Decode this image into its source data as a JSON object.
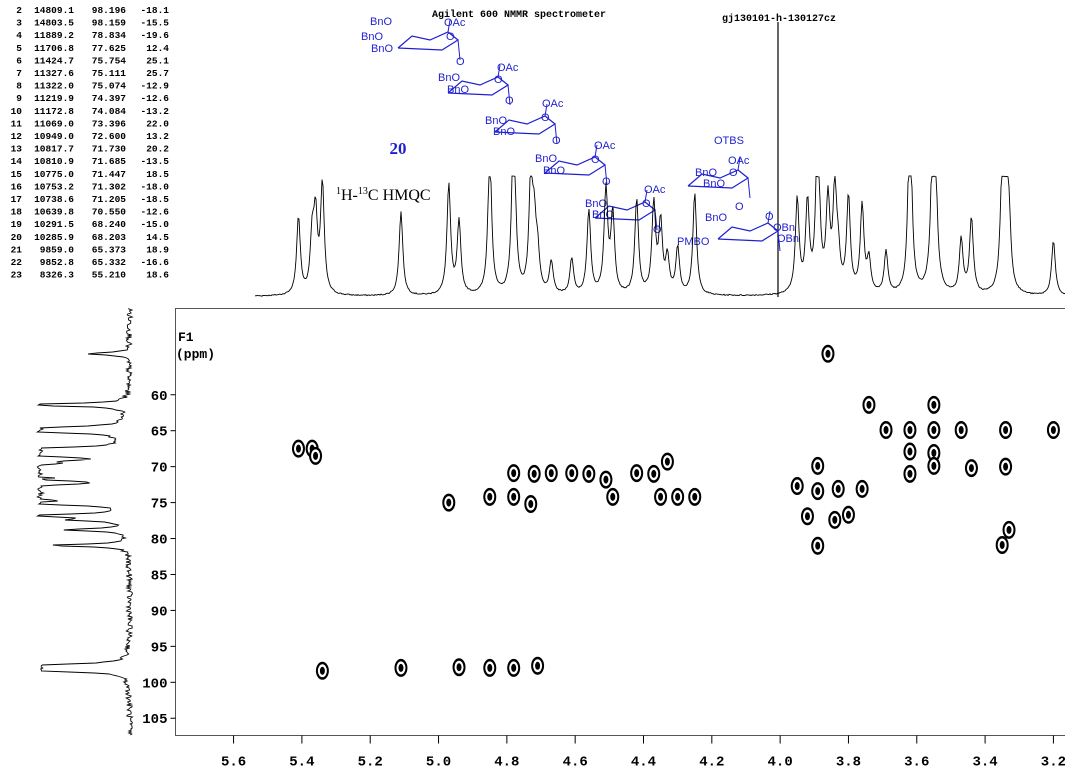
{
  "header": {
    "instrument": "Agilent 600 NMMR spectrometer",
    "file": "gj130101-h-130127cz"
  },
  "peak_table": {
    "rows": [
      [
        "2",
        "14809.1",
        "98.196",
        "-18.1"
      ],
      [
        "3",
        "14803.5",
        "98.159",
        "-15.5"
      ],
      [
        "4",
        "11889.2",
        "78.834",
        "-19.6"
      ],
      [
        "5",
        "11706.8",
        "77.625",
        "12.4"
      ],
      [
        "6",
        "11424.7",
        "75.754",
        "25.1"
      ],
      [
        "7",
        "11327.6",
        "75.111",
        "25.7"
      ],
      [
        "8",
        "11322.0",
        "75.074",
        "-12.9"
      ],
      [
        "9",
        "11219.9",
        "74.397",
        "-12.6"
      ],
      [
        "10",
        "11172.8",
        "74.084",
        "-13.2"
      ],
      [
        "11",
        "11069.0",
        "73.396",
        "22.0"
      ],
      [
        "12",
        "10949.0",
        "72.600",
        "13.2"
      ],
      [
        "13",
        "10817.7",
        "71.730",
        "20.2"
      ],
      [
        "14",
        "10810.9",
        "71.685",
        "-13.5"
      ],
      [
        "15",
        "10775.0",
        "71.447",
        "18.5"
      ],
      [
        "16",
        "10753.2",
        "71.302",
        "-18.0"
      ],
      [
        "17",
        "10738.6",
        "71.205",
        "-18.5"
      ],
      [
        "18",
        "10639.8",
        "70.550",
        "-12.6"
      ],
      [
        "19",
        "10291.5",
        "68.240",
        "-15.0"
      ],
      [
        "20",
        "10285.9",
        "68.203",
        "14.5"
      ],
      [
        "21",
        "9859.0",
        "65.373",
        "18.9"
      ],
      [
        "22",
        "9852.8",
        "65.332",
        "-16.6"
      ],
      [
        "23",
        "8326.3",
        "55.210",
        "18.6"
      ]
    ]
  },
  "compound": {
    "number": "20",
    "experiment": [
      "1",
      "H-",
      "13",
      "C HMQC"
    ]
  },
  "structure": {
    "labels": [
      "BnO",
      "BnO",
      "BnO",
      "OAc",
      "O",
      "O",
      "BnO",
      "BnO",
      "OAc",
      "O",
      "O",
      "BnO",
      "BnO",
      "OAc",
      "O",
      "O",
      "BnO",
      "BnO",
      "OAc",
      "O",
      "O",
      "BnO",
      "BnO",
      "OAc",
      "O",
      "O",
      "OTBS",
      "BnO",
      "BnO",
      "OAc",
      "O",
      "O",
      "BnO",
      "PMBO",
      "OBn",
      "OBn",
      "O"
    ]
  },
  "chart_data": {
    "type": "scatter",
    "ylabel": "F1",
    "ylabel_unit": "(ppm)",
    "xlim": [
      5.77,
      3.15
    ],
    "ylim": [
      48,
      107.4
    ],
    "xticks": [
      5.6,
      5.4,
      5.2,
      {
        "value": 5,
        "label": "5.0"
      },
      4.8,
      4.6,
      4.4,
      4.2,
      {
        "value": 4,
        "label": "4.0"
      },
      3.8,
      3.6,
      3.4,
      3.2
    ],
    "yticks": [
      60,
      65,
      70,
      75,
      80,
      85,
      90,
      95,
      100,
      105
    ],
    "color": "#000000",
    "x": [
      5.41,
      5.37,
      5.36,
      5.34,
      5.11,
      4.94,
      4.85,
      4.78,
      4.71,
      4.97,
      4.85,
      4.78,
      4.73,
      4.78,
      4.72,
      4.67,
      4.61,
      4.56,
      4.51,
      4.42,
      4.37,
      4.33,
      4.49,
      4.35,
      4.3,
      4.25,
      3.89,
      3.95,
      3.89,
      3.83,
      3.76,
      3.92,
      3.84,
      3.8,
      3.89,
      3.86,
      3.74,
      3.55,
      3.69,
      3.62,
      3.55,
      3.47,
      3.34,
      3.2,
      3.55,
      3.55,
      3.62,
      3.62,
      3.44,
      3.34,
      3.33,
      3.35
    ],
    "y": [
      67.5,
      67.5,
      68.5,
      98.4,
      98.0,
      97.9,
      98.0,
      98.0,
      97.7,
      75.0,
      74.2,
      74.2,
      75.2,
      70.9,
      71.0,
      70.9,
      70.9,
      71.0,
      71.8,
      70.9,
      71.0,
      69.3,
      74.2,
      74.2,
      74.2,
      74.2,
      69.9,
      72.7,
      73.4,
      73.1,
      73.1,
      76.9,
      77.4,
      76.7,
      81.0,
      54.3,
      61.4,
      61.4,
      64.9,
      64.9,
      64.9,
      64.9,
      64.9,
      64.9,
      68.1,
      69.9,
      67.9,
      71.0,
      70.2,
      70.0,
      78.8,
      80.9
    ]
  }
}
